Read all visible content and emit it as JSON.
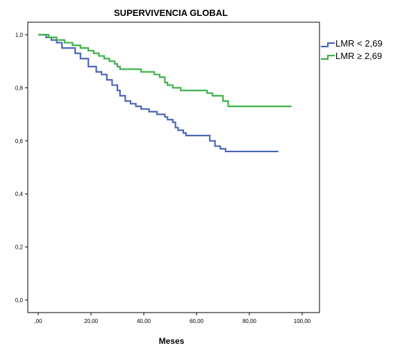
{
  "chart_data": {
    "type": "line",
    "title": "SUPERVIVENCIA GLOBAL",
    "xlabel": "Meses",
    "ylabel": "",
    "xlim": [
      0,
      100
    ],
    "ylim": [
      0,
      1
    ],
    "x_ticks": [
      0,
      20,
      40,
      60,
      80,
      100
    ],
    "x_tick_labels": [
      ",00",
      "20,00",
      "40,00",
      "60,00",
      "80,00",
      "100,00"
    ],
    "y_ticks": [
      0,
      0.2,
      0.4,
      0.6,
      0.8,
      1.0
    ],
    "y_tick_labels": [
      "0,0",
      "0,2",
      "0,4",
      "0,6",
      "0,8",
      "1,0"
    ],
    "grid": false,
    "legend": "right",
    "series": [
      {
        "name": "LMR < 2,69",
        "color": "#4a66b8",
        "step": true,
        "x": [
          0,
          3,
          5,
          7,
          9,
          14,
          16,
          19,
          22,
          24,
          26,
          28,
          30,
          31,
          33,
          35,
          37,
          39,
          42,
          45,
          48,
          49,
          51,
          52,
          53,
          55,
          56,
          59,
          65,
          67,
          69,
          71,
          91
        ],
        "y": [
          1.0,
          0.99,
          0.98,
          0.97,
          0.95,
          0.93,
          0.91,
          0.88,
          0.86,
          0.85,
          0.83,
          0.81,
          0.79,
          0.77,
          0.75,
          0.74,
          0.73,
          0.72,
          0.71,
          0.7,
          0.69,
          0.68,
          0.67,
          0.65,
          0.64,
          0.63,
          0.62,
          0.62,
          0.6,
          0.58,
          0.57,
          0.56,
          0.56
        ]
      },
      {
        "name": "LMR ≥ 2,69",
        "color": "#3eb14a",
        "step": true,
        "x": [
          0,
          4,
          7,
          10,
          13,
          16,
          19,
          21,
          23,
          25,
          27,
          29,
          30,
          31,
          35,
          39,
          41,
          44,
          46,
          48,
          49,
          51,
          54,
          60,
          64,
          66,
          70,
          72,
          96
        ],
        "y": [
          1.0,
          0.99,
          0.98,
          0.97,
          0.96,
          0.95,
          0.94,
          0.93,
          0.92,
          0.91,
          0.9,
          0.89,
          0.88,
          0.87,
          0.87,
          0.86,
          0.86,
          0.85,
          0.84,
          0.82,
          0.81,
          0.8,
          0.79,
          0.79,
          0.78,
          0.77,
          0.75,
          0.73,
          0.73
        ]
      }
    ]
  }
}
